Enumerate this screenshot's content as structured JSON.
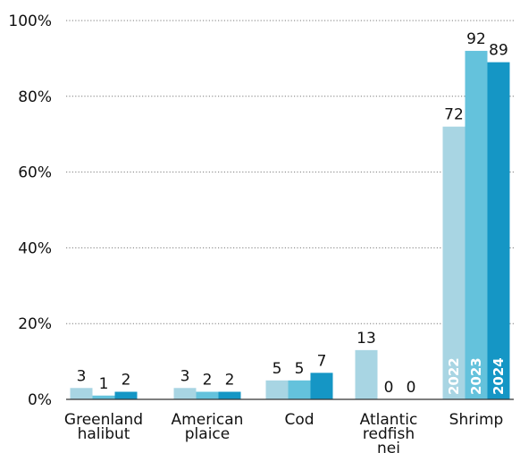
{
  "chart_data": {
    "type": "bar",
    "categories": [
      [
        "Greenland",
        "halibut"
      ],
      [
        "American",
        "plaice"
      ],
      [
        "Cod"
      ],
      [
        "Atlantic",
        "redfish",
        "nei"
      ],
      [
        "Shrimp"
      ]
    ],
    "series": [
      {
        "name": "2022",
        "values": [
          3,
          3,
          5,
          13,
          72
        ]
      },
      {
        "name": "2023",
        "values": [
          1,
          2,
          5,
          0,
          92
        ]
      },
      {
        "name": "2024",
        "values": [
          2,
          2,
          7,
          0,
          89
        ]
      }
    ],
    "y_ticks": [
      "0%",
      "20%",
      "40%",
      "60%",
      "80%",
      "100%"
    ],
    "ylim": [
      0,
      100
    ],
    "grid": "horizontal dotted",
    "series_labels_in_bars_of_category": "Shrimp",
    "colors": [
      "#a8d5e3",
      "#64c2dc",
      "#1596c5"
    ],
    "title": "",
    "xlabel": "",
    "ylabel": ""
  }
}
